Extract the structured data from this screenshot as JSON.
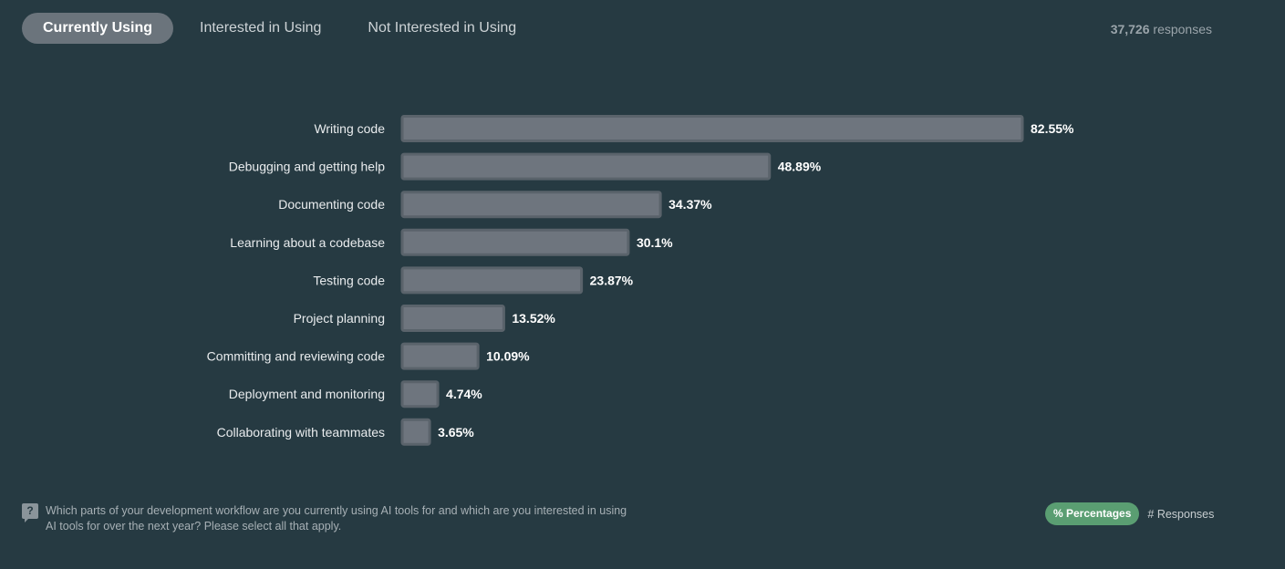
{
  "tabs": {
    "currently": "Currently Using",
    "interested": "Interested in Using",
    "not_interested": "Not Interested in Using"
  },
  "responses": {
    "count": "37,726",
    "label": "responses"
  },
  "chart_data": {
    "type": "bar",
    "orientation": "horizontal",
    "categories": [
      "Writing code",
      "Debugging and getting help",
      "Documenting code",
      "Learning about a codebase",
      "Testing code",
      "Project planning",
      "Committing and reviewing code",
      "Deployment and monitoring",
      "Collaborating with teammates"
    ],
    "values": [
      82.55,
      48.89,
      34.37,
      30.1,
      23.87,
      13.52,
      10.09,
      4.74,
      3.65
    ],
    "value_labels": [
      "82.55%",
      "48.89%",
      "34.37%",
      "30.1%",
      "23.87%",
      "13.52%",
      "10.09%",
      "4.74%",
      "3.65%"
    ],
    "unit": "%",
    "xlim": [
      0,
      82.55
    ],
    "grid": false,
    "bar_color": "#6e757e"
  },
  "question": {
    "icon": "question-icon",
    "text": "Which parts of your development workflow are you currently using AI tools for and which are you interested in using AI tools for over the next year? Please select all that apply."
  },
  "view_toggle": {
    "percentages": "% Percentages",
    "responses": "# Responses"
  },
  "colors": {
    "background": "#263a42",
    "active_tab": "#6b747c",
    "toggle_active": "#5a9e72"
  }
}
